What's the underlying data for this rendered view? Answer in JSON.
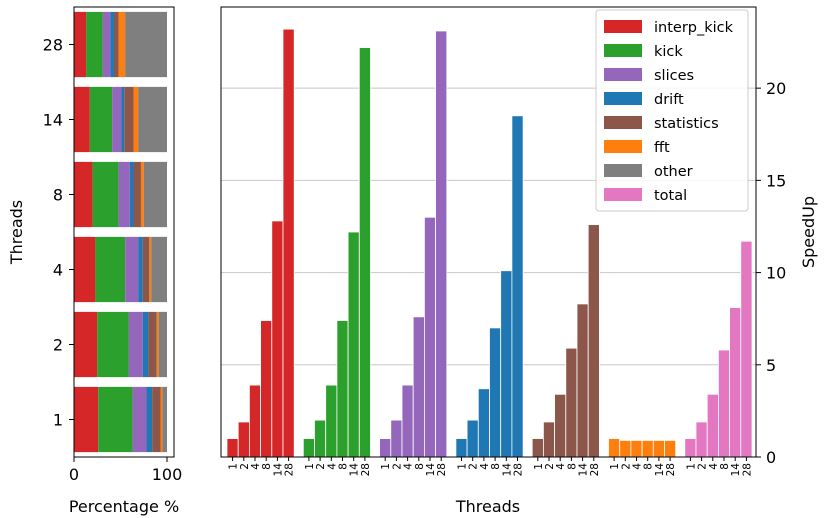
{
  "colors": {
    "interp_kick": "#d62728",
    "kick": "#2ca02c",
    "slices": "#9467bd",
    "drift": "#1f77b4",
    "statistics": "#8c564b",
    "fft": "#ff7f0e",
    "other": "#7f7f7f",
    "total": "#e377c2"
  },
  "chart_data": [
    {
      "type": "bar",
      "orientation": "horizontal-stacked",
      "categories": [
        "1",
        "2",
        "4",
        "8",
        "14",
        "28"
      ],
      "xlabel": "Percentage %",
      "ylabel": "Threads",
      "xlim": [
        0,
        100
      ],
      "x_ticks": [
        "0",
        "100"
      ],
      "series": [
        {
          "name": "interp_kick",
          "values": [
            26,
            25,
            23,
            20,
            17,
            13
          ]
        },
        {
          "name": "kick",
          "values": [
            37,
            34,
            32,
            28,
            24,
            18
          ]
        },
        {
          "name": "slices",
          "values": [
            15,
            15,
            14,
            12,
            10,
            8
          ]
        },
        {
          "name": "drift",
          "values": [
            6,
            6,
            5,
            4,
            3,
            4
          ]
        },
        {
          "name": "statistics",
          "values": [
            9,
            9,
            7,
            8,
            10,
            5
          ]
        },
        {
          "name": "fft",
          "values": [
            2,
            2,
            2,
            3,
            5,
            7
          ]
        },
        {
          "name": "other",
          "values": [
            5,
            9,
            17,
            25,
            31,
            45
          ]
        }
      ]
    },
    {
      "type": "bar",
      "xlabel": "Threads",
      "ylabel": "SpeedUp",
      "ylim": [
        0,
        24.4
      ],
      "y_ticks": [
        "0",
        "5",
        "10",
        "15",
        "20"
      ],
      "grid": true,
      "legend_position": "top-right",
      "thread_labels": [
        "1",
        "2",
        "4",
        "8",
        "14",
        "28"
      ],
      "series": [
        {
          "name": "interp_kick",
          "values": [
            1.0,
            1.9,
            3.9,
            7.4,
            12.8,
            23.2
          ]
        },
        {
          "name": "kick",
          "values": [
            1.0,
            2.0,
            3.9,
            7.4,
            12.2,
            22.2
          ]
        },
        {
          "name": "slices",
          "values": [
            1.0,
            2.0,
            3.9,
            7.6,
            13.0,
            23.1
          ]
        },
        {
          "name": "drift",
          "values": [
            1.0,
            2.0,
            3.7,
            7.0,
            10.1,
            18.5
          ]
        },
        {
          "name": "statistics",
          "values": [
            1.0,
            1.9,
            3.4,
            5.9,
            8.3,
            12.6
          ]
        },
        {
          "name": "fft",
          "values": [
            1.0,
            0.9,
            0.9,
            0.9,
            0.9,
            0.9
          ]
        },
        {
          "name": "total",
          "values": [
            1.0,
            1.9,
            3.4,
            5.8,
            8.1,
            11.7
          ]
        }
      ]
    }
  ]
}
